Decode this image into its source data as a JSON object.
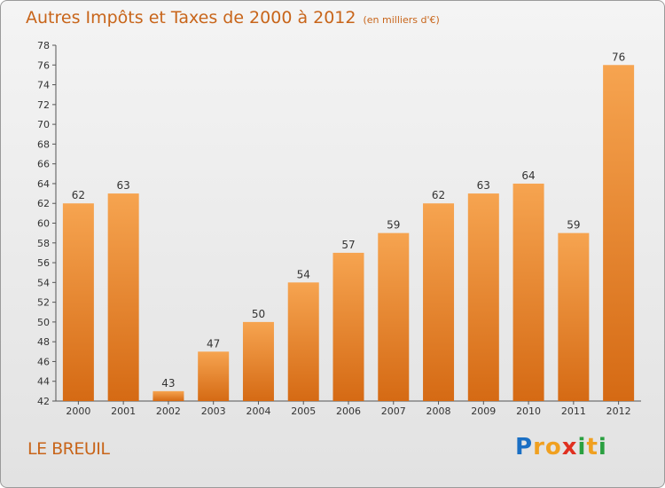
{
  "title": "Autres Impôts et Taxes de 2000 à 2012",
  "subtitle": "(en milliers d'€)",
  "commune": "LE BREUIL",
  "logo": {
    "letters": [
      "P",
      "r",
      "o",
      "x",
      "i",
      "t",
      "i"
    ],
    "colors": [
      "#1a6fc4",
      "#f0a020",
      "#f0a020",
      "#e03020",
      "#2aa040",
      "#f0a020",
      "#2aa040"
    ]
  },
  "colors": {
    "bar_top": "#f6a450",
    "bar_bottom": "#d56a14",
    "title": "#c8651a"
  },
  "chart_data": {
    "type": "bar",
    "categories": [
      "2000",
      "2001",
      "2002",
      "2003",
      "2004",
      "2005",
      "2006",
      "2007",
      "2008",
      "2009",
      "2010",
      "2011",
      "2012"
    ],
    "values": [
      62,
      63,
      43,
      47,
      50,
      54,
      57,
      59,
      62,
      63,
      64,
      59,
      76
    ],
    "title": "Autres Impôts et Taxes de 2000 à 2012",
    "xlabel": "",
    "ylabel": "",
    "ylim": [
      42,
      78
    ],
    "yticks": [
      42,
      44,
      46,
      48,
      50,
      52,
      54,
      56,
      58,
      60,
      62,
      64,
      66,
      68,
      70,
      72,
      74,
      76,
      78
    ],
    "grid": false,
    "data_labels": true
  }
}
